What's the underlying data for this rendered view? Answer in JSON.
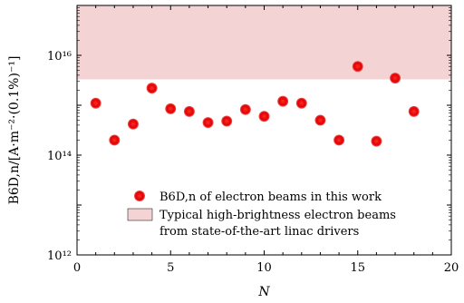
{
  "chart_data": {
    "type": "scatter",
    "xlabel": "N",
    "ylabel": "B6D,n/[A·m⁻²·(0.1%)⁻¹]",
    "xlim": [
      0,
      20
    ],
    "ylim_log10": [
      12,
      17
    ],
    "x_ticks": [
      0,
      5,
      10,
      15,
      20
    ],
    "x_tick_labels": [
      "0",
      "5",
      "10",
      "15",
      "20"
    ],
    "y_ticks_log10": [
      12,
      14,
      16
    ],
    "y_tick_labels": [
      "10¹²",
      "10¹⁴",
      "10¹⁶"
    ],
    "grid": false,
    "legend_position": "lower-right",
    "series": [
      {
        "name": "B6D,n of electron beams in this work",
        "color": "#e00000",
        "x": [
          1,
          2,
          3,
          4,
          5,
          6,
          7,
          8,
          9,
          10,
          11,
          12,
          13,
          14,
          15,
          16,
          17,
          18
        ],
        "y": [
          1100000000000000.0,
          200000000000000.0,
          420000000000000.0,
          2200000000000000.0,
          850000000000000.0,
          750000000000000.0,
          450000000000000.0,
          480000000000000.0,
          820000000000000.0,
          600000000000000.0,
          1200000000000000.0,
          1100000000000000.0,
          500000000000000.0,
          200000000000000.0,
          6000000000000000.0,
          190000000000000.0,
          3500000000000000.0,
          750000000000000.0
        ]
      }
    ],
    "band": {
      "name": "Typical high-brightness electron beams from state-of-the-art linac drivers",
      "legend_lines": [
        "Typical high-brightness electron beams",
        "from state-of-the-art linac drivers"
      ],
      "y_range": [
        3300000000000000.0,
        1e+17
      ],
      "color": "#f3d3d3"
    }
  }
}
